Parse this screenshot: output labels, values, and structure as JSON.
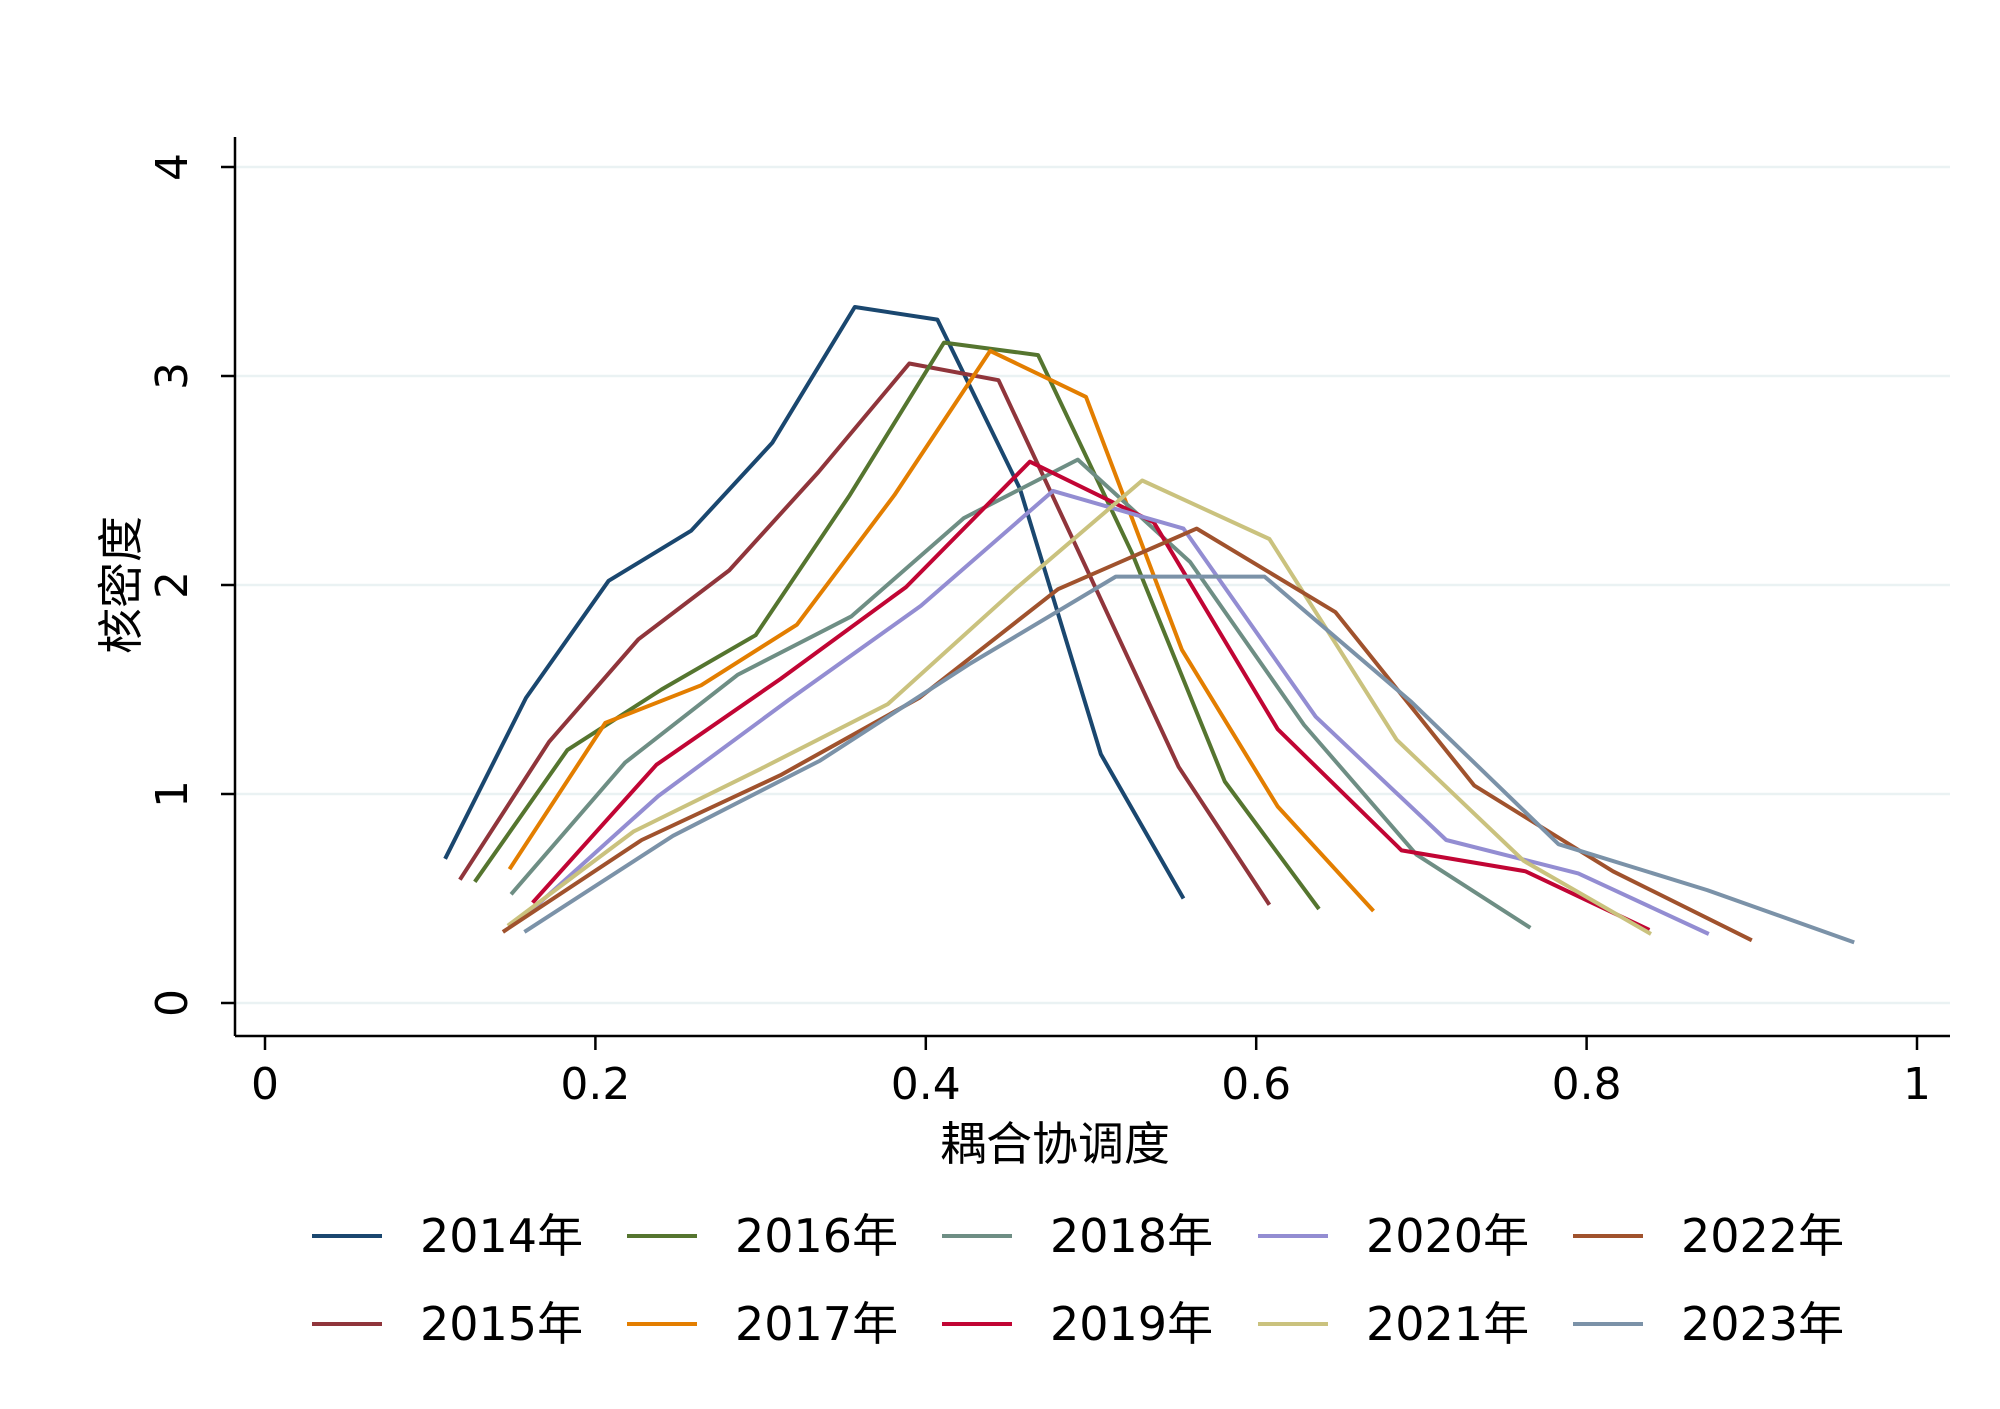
{
  "chart_data": {
    "type": "line",
    "title": "",
    "xlabel": "耦合协调度",
    "ylabel": "核密度",
    "xlim": [
      0,
      1
    ],
    "ylim": [
      0,
      4
    ],
    "xticks": [
      0,
      0.2,
      0.4,
      0.6,
      0.8,
      1
    ],
    "xtick_labels": [
      "0",
      "0.2",
      "0.4",
      "0.6",
      "0.8",
      "1"
    ],
    "yticks": [
      0,
      1,
      2,
      3,
      4
    ],
    "ytick_labels": [
      "0",
      "1",
      "2",
      "3",
      "4"
    ],
    "grid": "horizontal",
    "legend_position": "bottom",
    "series": [
      {
        "name": "2014年",
        "color": "#1a476f",
        "points": [
          [
            0.109,
            0.69
          ],
          [
            0.158,
            1.46
          ],
          [
            0.208,
            2.02
          ],
          [
            0.258,
            2.26
          ],
          [
            0.307,
            2.68
          ],
          [
            0.357,
            3.33
          ],
          [
            0.407,
            3.27
          ],
          [
            0.457,
            2.46
          ],
          [
            0.506,
            1.19
          ],
          [
            0.556,
            0.5
          ]
        ]
      },
      {
        "name": "2015年",
        "color": "#90353b",
        "points": [
          [
            0.118,
            0.59
          ],
          [
            0.172,
            1.25
          ],
          [
            0.226,
            1.74
          ],
          [
            0.281,
            2.07
          ],
          [
            0.335,
            2.54
          ],
          [
            0.39,
            3.06
          ],
          [
            0.444,
            2.98
          ],
          [
            0.499,
            2.05
          ],
          [
            0.553,
            1.13
          ],
          [
            0.608,
            0.47
          ]
        ]
      },
      {
        "name": "2016年",
        "color": "#55752f",
        "points": [
          [
            0.127,
            0.58
          ],
          [
            0.183,
            1.21
          ],
          [
            0.24,
            1.5
          ],
          [
            0.297,
            1.76
          ],
          [
            0.354,
            2.43
          ],
          [
            0.411,
            3.16
          ],
          [
            0.468,
            3.1
          ],
          [
            0.525,
            2.15
          ],
          [
            0.581,
            1.06
          ],
          [
            0.638,
            0.45
          ]
        ]
      },
      {
        "name": "2017年",
        "color": "#e37e00",
        "points": [
          [
            0.148,
            0.64
          ],
          [
            0.206,
            1.34
          ],
          [
            0.264,
            1.52
          ],
          [
            0.322,
            1.81
          ],
          [
            0.381,
            2.43
          ],
          [
            0.439,
            3.12
          ],
          [
            0.497,
            2.9
          ],
          [
            0.555,
            1.69
          ],
          [
            0.613,
            0.94
          ],
          [
            0.671,
            0.44
          ]
        ]
      },
      {
        "name": "2018年",
        "color": "#6e8e84",
        "points": [
          [
            0.149,
            0.52
          ],
          [
            0.218,
            1.15
          ],
          [
            0.286,
            1.57
          ],
          [
            0.355,
            1.85
          ],
          [
            0.423,
            2.32
          ],
          [
            0.492,
            2.6
          ],
          [
            0.56,
            2.11
          ],
          [
            0.629,
            1.33
          ],
          [
            0.697,
            0.71
          ],
          [
            0.766,
            0.36
          ]
        ]
      },
      {
        "name": "2019年",
        "color": "#c10534",
        "points": [
          [
            0.162,
            0.48
          ],
          [
            0.237,
            1.14
          ],
          [
            0.312,
            1.55
          ],
          [
            0.388,
            1.99
          ],
          [
            0.463,
            2.59
          ],
          [
            0.538,
            2.3
          ],
          [
            0.613,
            1.31
          ],
          [
            0.688,
            0.73
          ],
          [
            0.763,
            0.63
          ],
          [
            0.838,
            0.35
          ]
        ]
      },
      {
        "name": "2020年",
        "color": "#938dd2",
        "points": [
          [
            0.158,
            0.42
          ],
          [
            0.238,
            0.99
          ],
          [
            0.317,
            1.45
          ],
          [
            0.397,
            1.9
          ],
          [
            0.477,
            2.45
          ],
          [
            0.556,
            2.27
          ],
          [
            0.636,
            1.37
          ],
          [
            0.715,
            0.78
          ],
          [
            0.795,
            0.62
          ],
          [
            0.874,
            0.33
          ]
        ]
      },
      {
        "name": "2021年",
        "color": "#cac27e",
        "points": [
          [
            0.147,
            0.37
          ],
          [
            0.223,
            0.82
          ],
          [
            0.3,
            1.12
          ],
          [
            0.377,
            1.43
          ],
          [
            0.454,
            1.98
          ],
          [
            0.531,
            2.5
          ],
          [
            0.608,
            2.22
          ],
          [
            0.685,
            1.26
          ],
          [
            0.762,
            0.68
          ],
          [
            0.839,
            0.33
          ]
        ]
      },
      {
        "name": "2022年",
        "color": "#a0522d",
        "points": [
          [
            0.144,
            0.34
          ],
          [
            0.228,
            0.78
          ],
          [
            0.312,
            1.09
          ],
          [
            0.396,
            1.46
          ],
          [
            0.48,
            1.98
          ],
          [
            0.564,
            2.27
          ],
          [
            0.648,
            1.87
          ],
          [
            0.732,
            1.04
          ],
          [
            0.816,
            0.63
          ],
          [
            0.9,
            0.3
          ]
        ]
      },
      {
        "name": "2023年",
        "color": "#7b92a8",
        "points": [
          [
            0.157,
            0.34
          ],
          [
            0.247,
            0.8
          ],
          [
            0.336,
            1.16
          ],
          [
            0.426,
            1.62
          ],
          [
            0.515,
            2.04
          ],
          [
            0.605,
            2.04
          ],
          [
            0.694,
            1.44
          ],
          [
            0.783,
            0.76
          ],
          [
            0.873,
            0.54
          ],
          [
            0.962,
            0.29
          ]
        ]
      }
    ]
  }
}
